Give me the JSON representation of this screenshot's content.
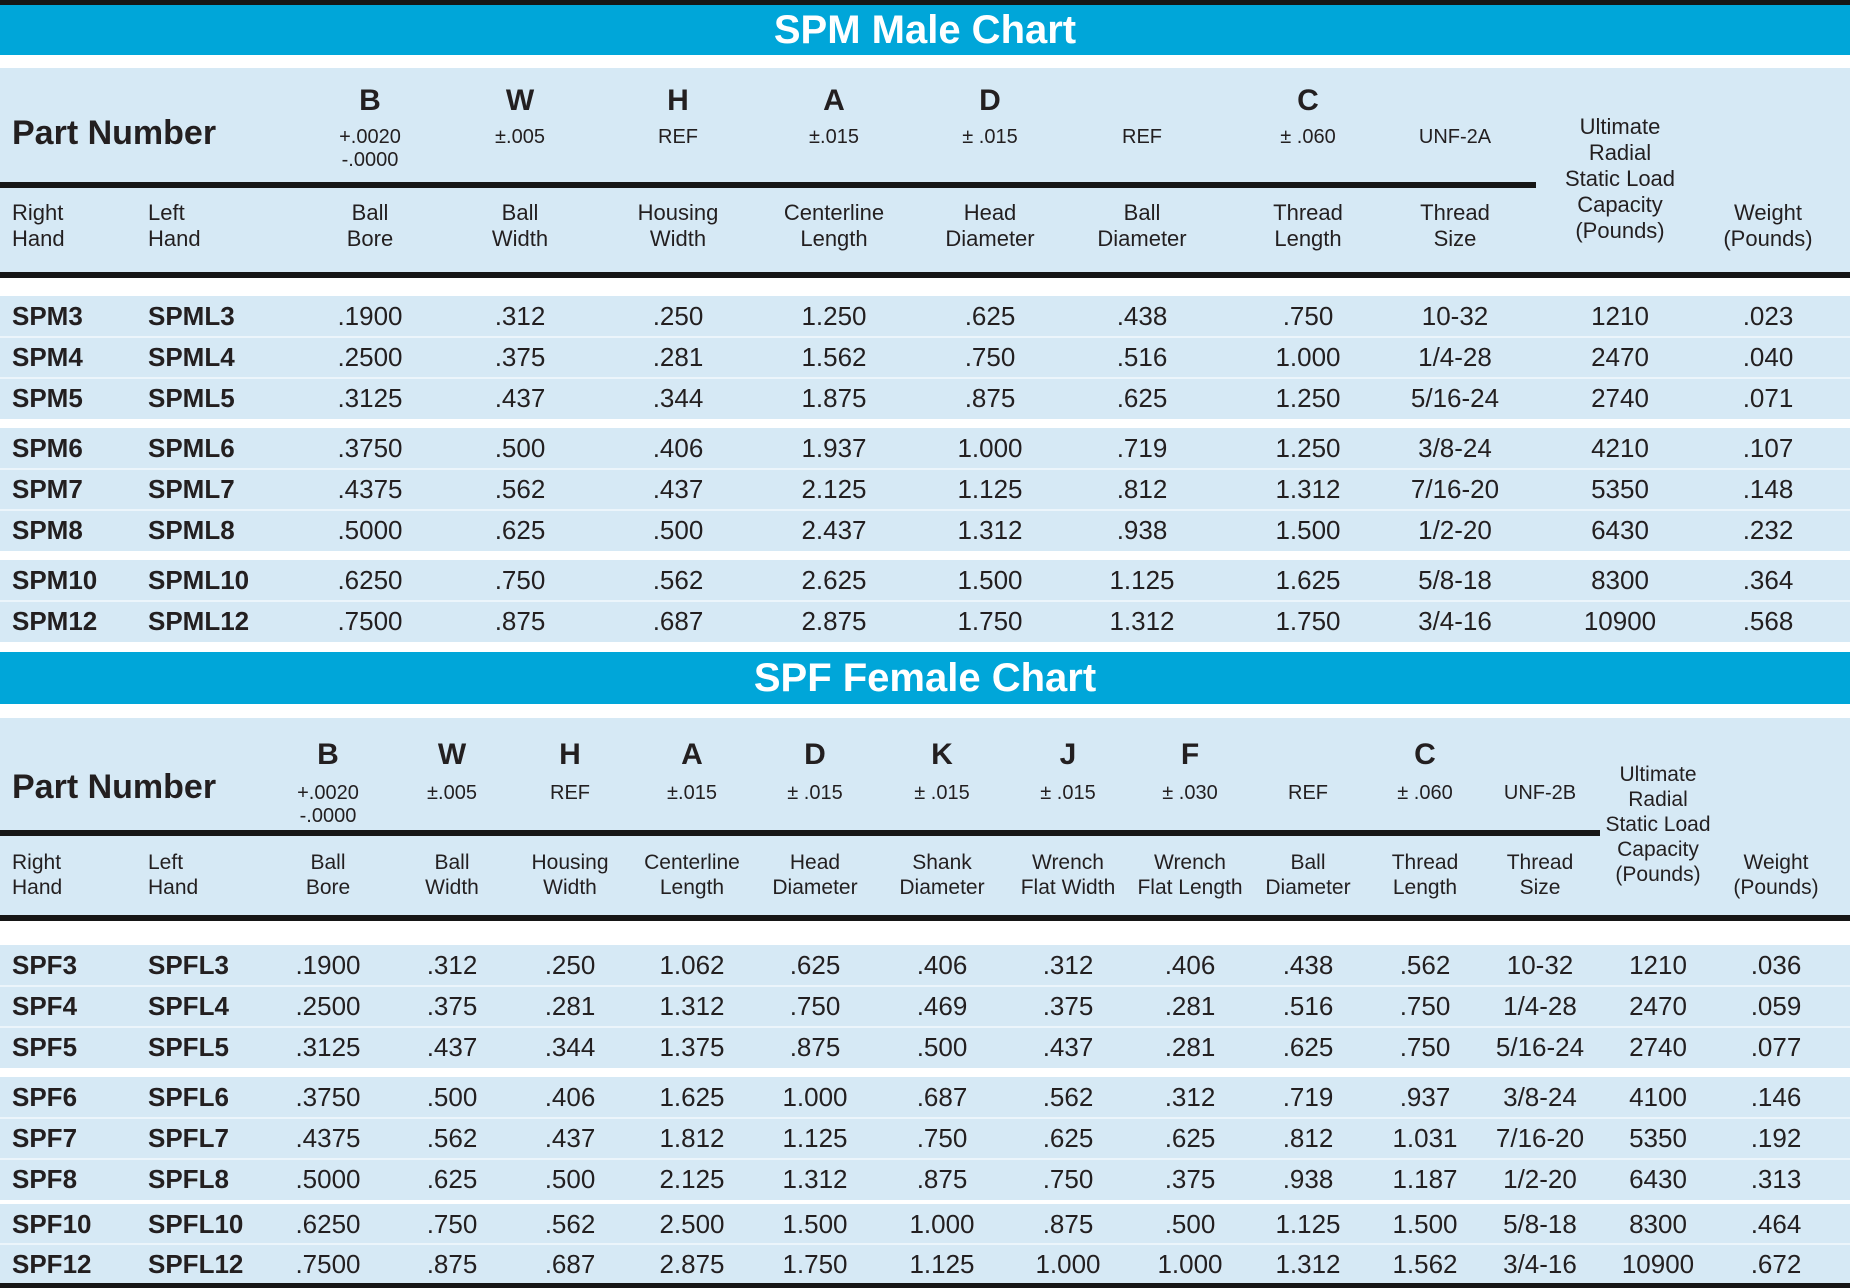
{
  "page": {
    "accent_cyan": "#00a6d9",
    "row_blue": "#d6e9f5",
    "rule_black": "#161616",
    "text_black": "#231f20",
    "title_white": "#ffffff"
  },
  "charts": [
    {
      "title": "SPM Male Chart",
      "part_number_label": "Part Number",
      "thread_spec": "UNF-2A",
      "columns": [
        {
          "letter": "",
          "tol": "",
          "label": "Right\nHand"
        },
        {
          "letter": "",
          "tol": "",
          "label": "Left\nHand"
        },
        {
          "letter": "B",
          "tol": "+.0020\n-.0000",
          "label": "Ball\nBore"
        },
        {
          "letter": "W",
          "tol": "±.005",
          "label": "Ball\nWidth"
        },
        {
          "letter": "H",
          "tol": "REF",
          "label": "Housing\nWidth"
        },
        {
          "letter": "A",
          "tol": "±.015",
          "label": "Centerline\nLength"
        },
        {
          "letter": "D",
          "tol": "± .015",
          "label": "Head\nDiameter"
        },
        {
          "letter": "",
          "tol": "REF",
          "label": "Ball\nDiameter"
        },
        {
          "letter": "C",
          "tol": "± .060",
          "label": "Thread\nLength"
        },
        {
          "letter": "",
          "tol": "UNF-2A",
          "label": "Thread\nSize"
        },
        {
          "letter": "",
          "tol": "",
          "label": "Ultimate\nRadial\nStatic Load\nCapacity\n(Pounds)"
        },
        {
          "letter": "",
          "tol": "",
          "label": "Weight\n(Pounds)"
        }
      ],
      "groups": [
        [
          [
            "SPM3",
            "SPML3",
            ".1900",
            ".312",
            ".250",
            "1.250",
            ".625",
            ".438",
            ".750",
            "10-32",
            "1210",
            ".023"
          ],
          [
            "SPM4",
            "SPML4",
            ".2500",
            ".375",
            ".281",
            "1.562",
            ".750",
            ".516",
            "1.000",
            "1/4-28",
            "2470",
            ".040"
          ],
          [
            "SPM5",
            "SPML5",
            ".3125",
            ".437",
            ".344",
            "1.875",
            ".875",
            ".625",
            "1.250",
            "5/16-24",
            "2740",
            ".071"
          ]
        ],
        [
          [
            "SPM6",
            "SPML6",
            ".3750",
            ".500",
            ".406",
            "1.937",
            "1.000",
            ".719",
            "1.250",
            "3/8-24",
            "4210",
            ".107"
          ],
          [
            "SPM7",
            "SPML7",
            ".4375",
            ".562",
            ".437",
            "2.125",
            "1.125",
            ".812",
            "1.312",
            "7/16-20",
            "5350",
            ".148"
          ],
          [
            "SPM8",
            "SPML8",
            ".5000",
            ".625",
            ".500",
            "2.437",
            "1.312",
            ".938",
            "1.500",
            "1/2-20",
            "6430",
            ".232"
          ]
        ],
        [
          [
            "SPM10",
            "SPML10",
            ".6250",
            ".750",
            ".562",
            "2.625",
            "1.500",
            "1.125",
            "1.625",
            "5/8-18",
            "8300",
            ".364"
          ],
          [
            "SPM12",
            "SPML12",
            ".7500",
            ".875",
            ".687",
            "2.875",
            "1.750",
            "1.312",
            "1.750",
            "3/4-16",
            "10900",
            ".568"
          ]
        ]
      ]
    },
    {
      "title": "SPF Female Chart",
      "part_number_label": "Part Number",
      "thread_spec": "UNF-2B",
      "columns": [
        {
          "letter": "",
          "tol": "",
          "label": "Right\nHand"
        },
        {
          "letter": "",
          "tol": "",
          "label": "Left\nHand"
        },
        {
          "letter": "B",
          "tol": "+.0020\n-.0000",
          "label": "Ball\nBore"
        },
        {
          "letter": "W",
          "tol": "±.005",
          "label": "Ball\nWidth"
        },
        {
          "letter": "H",
          "tol": "REF",
          "label": "Housing\nWidth"
        },
        {
          "letter": "A",
          "tol": "±.015",
          "label": "Centerline\nLength"
        },
        {
          "letter": "D",
          "tol": "± .015",
          "label": "Head\nDiameter"
        },
        {
          "letter": "K",
          "tol": "± .015",
          "label": "Shank\nDiameter"
        },
        {
          "letter": "J",
          "tol": "± .015",
          "label": "Wrench\nFlat Width"
        },
        {
          "letter": "F",
          "tol": "± .030",
          "label": "Wrench\nFlat Length"
        },
        {
          "letter": "",
          "tol": "REF",
          "label": "Ball\nDiameter"
        },
        {
          "letter": "C",
          "tol": "± .060",
          "label": "Thread\nLength"
        },
        {
          "letter": "",
          "tol": "UNF-2B",
          "label": "Thread\nSize"
        },
        {
          "letter": "",
          "tol": "",
          "label": "Ultimate\nRadial\nStatic Load\nCapacity\n(Pounds)"
        },
        {
          "letter": "",
          "tol": "",
          "label": "Weight\n(Pounds)"
        }
      ],
      "groups": [
        [
          [
            "SPF3",
            "SPFL3",
            ".1900",
            ".312",
            ".250",
            "1.062",
            ".625",
            ".406",
            ".312",
            ".406",
            ".438",
            ".562",
            "10-32",
            "1210",
            ".036"
          ],
          [
            "SPF4",
            "SPFL4",
            ".2500",
            ".375",
            ".281",
            "1.312",
            ".750",
            ".469",
            ".375",
            ".281",
            ".516",
            ".750",
            "1/4-28",
            "2470",
            ".059"
          ],
          [
            "SPF5",
            "SPFL5",
            ".3125",
            ".437",
            ".344",
            "1.375",
            ".875",
            ".500",
            ".437",
            ".281",
            ".625",
            ".750",
            "5/16-24",
            "2740",
            ".077"
          ]
        ],
        [
          [
            "SPF6",
            "SPFL6",
            ".3750",
            ".500",
            ".406",
            "1.625",
            "1.000",
            ".687",
            ".562",
            ".312",
            ".719",
            ".937",
            "3/8-24",
            "4100",
            ".146"
          ],
          [
            "SPF7",
            "SPFL7",
            ".4375",
            ".562",
            ".437",
            "1.812",
            "1.125",
            ".750",
            ".625",
            ".625",
            ".812",
            "1.031",
            "7/16-20",
            "5350",
            ".192"
          ],
          [
            "SPF8",
            "SPFL8",
            ".5000",
            ".625",
            ".500",
            "2.125",
            "1.312",
            ".875",
            ".750",
            ".375",
            ".938",
            "1.187",
            "1/2-20",
            "6430",
            ".313"
          ]
        ],
        [
          [
            "SPF10",
            "SPFL10",
            ".6250",
            ".750",
            ".562",
            "2.500",
            "1.500",
            "1.000",
            ".875",
            ".500",
            "1.125",
            "1.500",
            "5/8-18",
            "8300",
            ".464"
          ],
          [
            "SPF12",
            "SPFL12",
            ".7500",
            ".875",
            ".687",
            "2.875",
            "1.750",
            "1.125",
            "1.000",
            "1.000",
            "1.312",
            "1.562",
            "3/4-16",
            "10900",
            ".672"
          ]
        ]
      ]
    }
  ]
}
